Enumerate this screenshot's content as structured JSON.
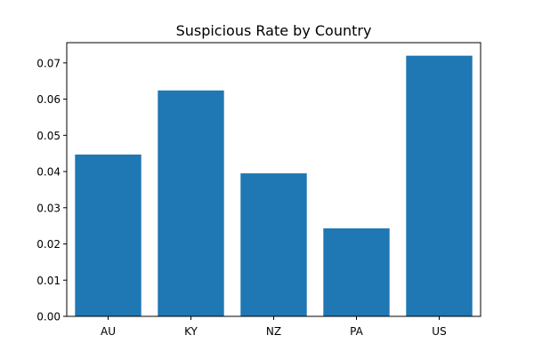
{
  "chart_data": {
    "type": "bar",
    "title": "Suspicious Rate by Country",
    "xlabel": "",
    "ylabel": "",
    "categories": [
      "AU",
      "KY",
      "NZ",
      "PA",
      "US"
    ],
    "values": [
      0.0447,
      0.0624,
      0.0395,
      0.0243,
      0.072
    ],
    "ylim": [
      0,
      0.0756
    ],
    "yticks": [
      "0.00",
      "0.01",
      "0.02",
      "0.03",
      "0.04",
      "0.05",
      "0.06",
      "0.07"
    ],
    "grid": false,
    "legend": "none",
    "colors": {
      "bar": "#1f77b4",
      "axis": "#000000",
      "background": "#ffffff"
    }
  }
}
